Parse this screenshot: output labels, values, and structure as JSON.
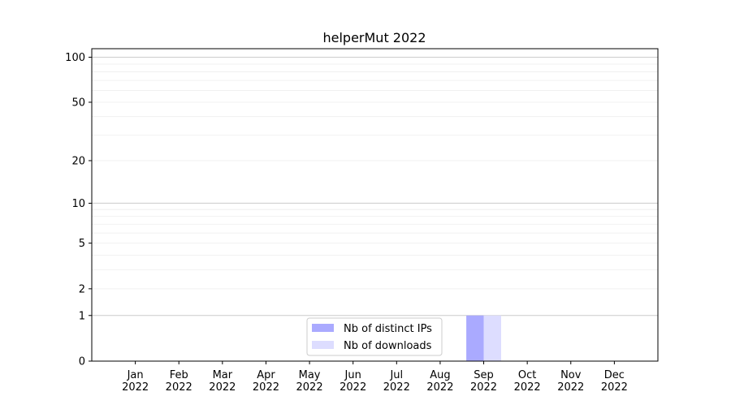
{
  "chart_data": {
    "type": "bar",
    "title": "helperMut 2022",
    "xlabel": "",
    "ylabel": "",
    "categories": [
      "Jan\n2022",
      "Feb\n2022",
      "Mar\n2022",
      "Apr\n2022",
      "May\n2022",
      "Jun\n2022",
      "Jul\n2022",
      "Aug\n2022",
      "Sep\n2022",
      "Oct\n2022",
      "Nov\n2022",
      "Dec\n2022"
    ],
    "series": [
      {
        "name": "Nb of distinct IPs",
        "color": "#aaaaff",
        "values": [
          0,
          0,
          0,
          0,
          0,
          0,
          0,
          0,
          1,
          0,
          0,
          0
        ]
      },
      {
        "name": "Nb of downloads",
        "color": "#ddddff",
        "values": [
          0,
          0,
          0,
          0,
          0,
          0,
          0,
          0,
          1,
          0,
          0,
          0
        ]
      }
    ],
    "yscale": "log(1+y)",
    "yticks": [
      0,
      1,
      2,
      5,
      10,
      20,
      50,
      100
    ],
    "ylim": [
      0,
      114
    ],
    "grid": true,
    "legend": "bottom-center"
  }
}
